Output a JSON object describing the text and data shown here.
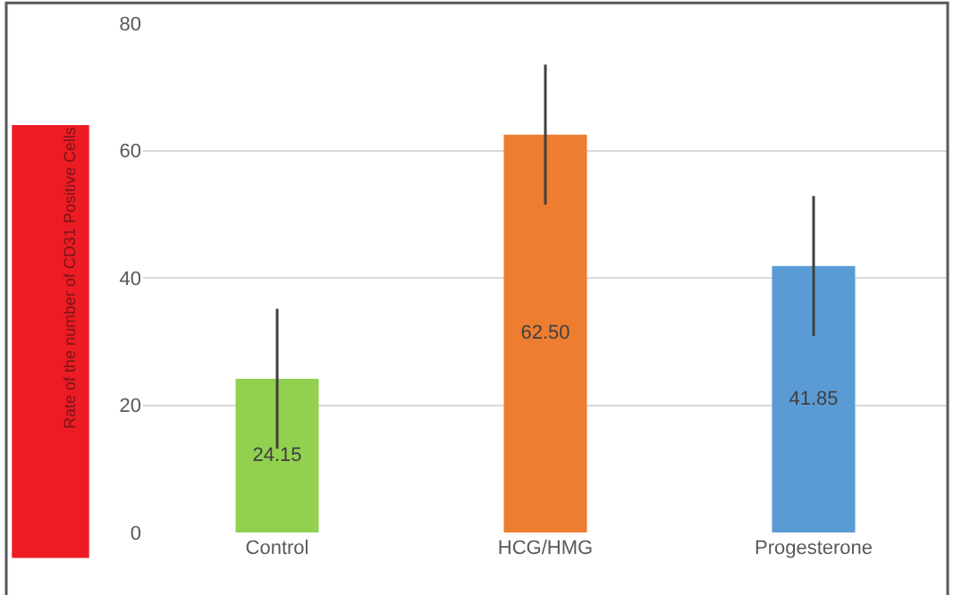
{
  "chart_data": {
    "type": "bar",
    "ylabel": "Rate of the number of CD31 Positive Cells",
    "categories": [
      "Control",
      "HCG/HMG",
      "Progesterone"
    ],
    "values": [
      24.15,
      62.5,
      41.85
    ],
    "colors": [
      "#92d050",
      "#ed7d31",
      "#5b9bd5"
    ],
    "errors": [
      11,
      11,
      11
    ],
    "value_labels": [
      "24.15",
      "62.50",
      "41.85"
    ],
    "ylim": [
      0,
      80
    ],
    "yticks": [
      0,
      20,
      40,
      60,
      80
    ],
    "grid": "y"
  }
}
